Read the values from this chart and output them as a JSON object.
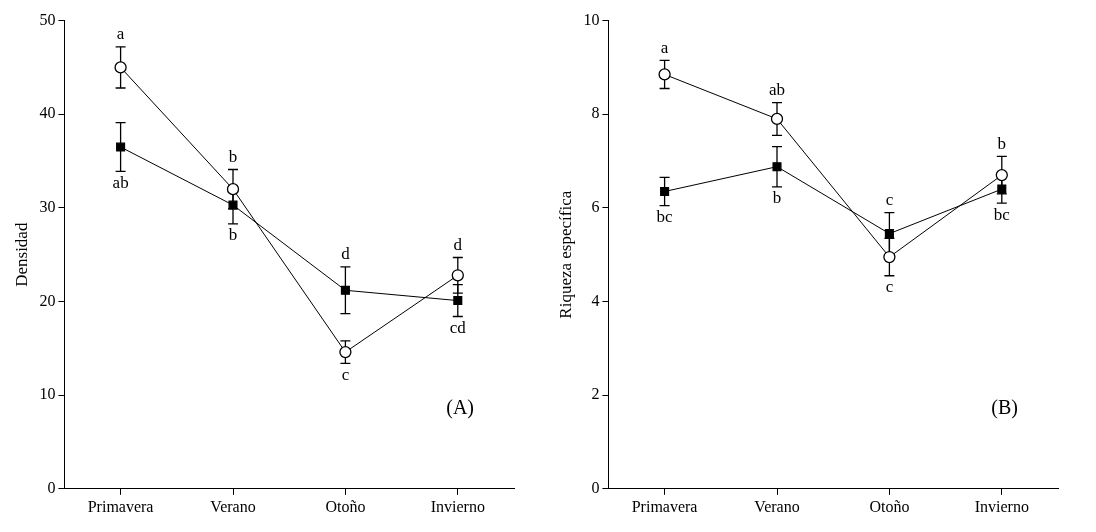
{
  "chart_data": [
    {
      "type": "line",
      "ylabel": "Densidad",
      "categories": [
        "Primavera",
        "Verano",
        "Otoño",
        "Invierno"
      ],
      "ylim": [
        0,
        50
      ],
      "yticks": [
        0,
        10,
        20,
        30,
        40,
        50
      ],
      "grid": false,
      "series": [
        {
          "color": "#000000",
          "marker": "circle",
          "values": [
            45,
            32,
            14.6,
            22.8
          ],
          "errors": [
            2.2,
            2.1,
            1.2,
            1.9
          ]
        },
        {
          "color": "#000000",
          "marker": "square",
          "values": [
            36.5,
            30.3,
            21.2,
            20.1
          ],
          "errors": [
            2.6,
            2,
            2.5,
            1.7
          ]
        }
      ],
      "annotations": [
        {
          "text": "a",
          "x": "Primavera",
          "y": 45
        },
        {
          "text": "ab",
          "x": "Primavera",
          "y": 36.5
        },
        {
          "text": "b",
          "x": "Verano",
          "y": 32
        },
        {
          "text": "b",
          "x": "Verano",
          "y": 30.3
        },
        {
          "text": "d",
          "x": "Otoño",
          "y": 21.2
        },
        {
          "text": "c",
          "x": "Otoño",
          "y": 14.6
        },
        {
          "text": "d",
          "x": "Invierno",
          "y": 22.8
        },
        {
          "text": "cd",
          "x": "Invierno",
          "y": 20.1
        },
        "(A)"
      ]
    },
    {
      "type": "line",
      "ylabel": "Riqueza específica",
      "categories": [
        "Primavera",
        "Verano",
        "Otoño",
        "Invierno"
      ],
      "ylim": [
        0,
        10
      ],
      "yticks": [
        0,
        2,
        4,
        6,
        8,
        10
      ],
      "grid": false,
      "series": [
        {
          "color": "#000000",
          "marker": "circle",
          "values": [
            8.85,
            7.9,
            4.95,
            6.7
          ],
          "errors": [
            0.3,
            0.35,
            0.4,
            0.4
          ]
        },
        {
          "color": "#000000",
          "marker": "square",
          "values": [
            6.35,
            6.88,
            5.45,
            6.4
          ],
          "errors": [
            0.3,
            0.43,
            0.45,
            0.3
          ]
        }
      ],
      "annotations": [
        {
          "text": "a",
          "x": "Primavera",
          "y": 8.85
        },
        {
          "text": "bc",
          "x": "Primavera",
          "y": 6.35
        },
        {
          "text": "ab",
          "x": "Verano",
          "y": 7.9
        },
        {
          "text": "b",
          "x": "Verano",
          "y": 6.88
        },
        {
          "text": "c",
          "x": "Otoño",
          "y": 5.45
        },
        {
          "text": "c",
          "x": "Otoño",
          "y": 4.95
        },
        {
          "text": "b",
          "x": "Invierno",
          "y": 6.7
        },
        {
          "text": "bc",
          "x": "Invierno",
          "y": 6.4
        },
        "(B)"
      ]
    }
  ]
}
